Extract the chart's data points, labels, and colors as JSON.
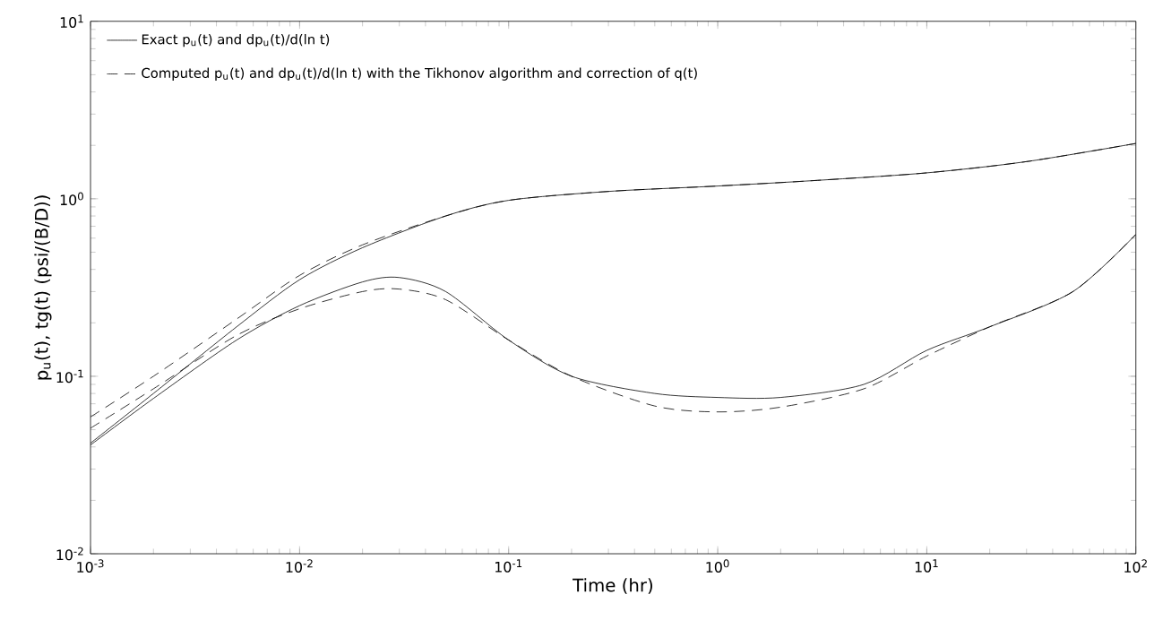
{
  "chart_data": {
    "type": "line",
    "xlabel": "Time (hr)",
    "ylabel": "p$_{u}$(t), tg(t) (psi/(B/D))",
    "log": "xy",
    "grid": false,
    "legend": "top left",
    "marker": "none",
    "xlim": [
      0.001,
      100
    ],
    "ylim": [
      0.01,
      10
    ],
    "xticks": [
      {
        "value": 0.001,
        "label": "10$^{-3}$"
      },
      {
        "value": 0.01,
        "label": "10$^{-2}$"
      },
      {
        "value": 0.1,
        "label": "10$^{-1}$"
      },
      {
        "value": 1,
        "label": "10$^{0}$"
      },
      {
        "value": 10,
        "label": "10$^{1}$"
      },
      {
        "value": 100,
        "label": "10$^{2}$"
      }
    ],
    "yticks": [
      {
        "value": 0.01,
        "label": "10$^{-2}$"
      },
      {
        "value": 0.1,
        "label": "10$^{-1}$"
      },
      {
        "value": 1,
        "label": "10$^{0}$"
      },
      {
        "value": 10,
        "label": "10$^{1}$"
      }
    ],
    "series": [
      {
        "name": "Exact p$_{u}$(t) and dp$_{u}$(t)/d(ln t)",
        "color": "#000000",
        "line_style": "solid",
        "x": [
          0.001,
          0.002,
          0.005,
          0.01,
          0.02,
          0.05,
          0.1,
          0.3,
          1,
          3,
          10,
          30,
          100
        ],
        "values": [
          0.042,
          0.08,
          0.19,
          0.35,
          0.53,
          0.8,
          0.98,
          1.1,
          1.18,
          1.27,
          1.4,
          1.62,
          2.05
        ]
      },
      {
        "color": "#000000",
        "line_style": "solid",
        "x": [
          0.001,
          0.002,
          0.005,
          0.01,
          0.02,
          0.03,
          0.05,
          0.1,
          0.2,
          0.5,
          1,
          2,
          5,
          10,
          20,
          50,
          100
        ],
        "values": [
          0.041,
          0.075,
          0.16,
          0.25,
          0.34,
          0.36,
          0.3,
          0.16,
          0.1,
          0.08,
          0.076,
          0.076,
          0.09,
          0.14,
          0.19,
          0.3,
          0.63
        ]
      },
      {
        "name": "Computed p$_{u}$(t) and dp$_{u}$(t)/d(ln t) with the Tikhonov algorithm and correction of q(t)",
        "color": "#000000",
        "line_style": "dashed",
        "x": [
          0.001,
          0.002,
          0.005,
          0.01,
          0.02,
          0.05,
          0.1,
          0.3,
          1,
          3,
          10,
          30,
          100
        ],
        "values": [
          0.059,
          0.1,
          0.21,
          0.37,
          0.55,
          0.8,
          0.98,
          1.1,
          1.18,
          1.27,
          1.4,
          1.62,
          2.05
        ]
      },
      {
        "color": "#000000",
        "line_style": "dashed",
        "x": [
          0.001,
          0.002,
          0.005,
          0.01,
          0.02,
          0.03,
          0.05,
          0.1,
          0.2,
          0.5,
          1,
          2,
          5,
          10,
          20,
          50,
          100
        ],
        "values": [
          0.051,
          0.085,
          0.17,
          0.24,
          0.3,
          0.31,
          0.27,
          0.16,
          0.1,
          0.068,
          0.063,
          0.067,
          0.085,
          0.13,
          0.19,
          0.3,
          0.63
        ]
      }
    ]
  }
}
